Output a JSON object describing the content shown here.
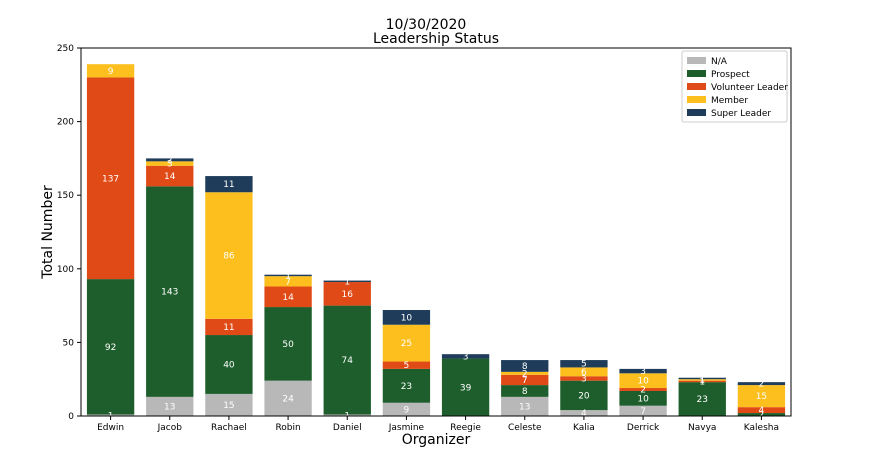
{
  "chart_data": {
    "type": "bar",
    "stacked": true,
    "title": "10/30/2020",
    "subtitle": "Leadership Status",
    "xlabel": "Organizer",
    "ylabel": "Total Number",
    "ylim": [
      0,
      250
    ],
    "yticks": [
      0,
      50,
      100,
      150,
      200,
      250
    ],
    "grid": false,
    "legend_position": "top-right",
    "categories": [
      "Edwin",
      "Jacob",
      "Rachael",
      "Robin",
      "Daniel",
      "Jasmine",
      "Reegie",
      "Celeste",
      "Kalia",
      "Derrick",
      "Navya",
      "Kalesha"
    ],
    "series": [
      {
        "name": "N/A",
        "color": "#b8b8b8",
        "values": [
          1,
          13,
          15,
          24,
          1,
          9,
          0,
          13,
          4,
          7,
          0,
          0
        ]
      },
      {
        "name": "Prospect",
        "color": "#1e5e2c",
        "values": [
          92,
          143,
          40,
          50,
          74,
          23,
          39,
          8,
          20,
          10,
          23,
          2
        ]
      },
      {
        "name": "Volunteer Leader",
        "color": "#e04a17",
        "values": [
          137,
          14,
          11,
          14,
          16,
          5,
          0,
          7,
          3,
          2,
          1,
          4
        ]
      },
      {
        "name": "Member",
        "color": "#fcbf1e",
        "values": [
          9,
          3,
          86,
          7,
          0,
          25,
          0,
          2,
          6,
          10,
          1,
          15
        ]
      },
      {
        "name": "Super Leader",
        "color": "#1f3d5a",
        "values": [
          0,
          2,
          11,
          1,
          1,
          10,
          3,
          8,
          5,
          3,
          1,
          2
        ]
      }
    ],
    "labels": [
      [
        "1",
        "13",
        "15",
        "24",
        "1",
        "9",
        "",
        "13",
        "4",
        "7",
        "",
        ""
      ],
      [
        "92",
        "143",
        "40",
        "50",
        "74",
        "23",
        "39",
        "8",
        "20",
        "10",
        "23",
        "2"
      ],
      [
        "137",
        "14",
        "11",
        "14",
        "16",
        "5",
        "",
        "7",
        "3",
        "2",
        "1",
        "4"
      ],
      [
        "9",
        "3",
        "86",
        "7",
        "",
        "25",
        "",
        "2",
        "6",
        "10",
        "1",
        "15"
      ],
      [
        "",
        "2",
        "11",
        "1",
        "1",
        "10",
        "3",
        "8",
        "5",
        "3",
        "1",
        "2"
      ]
    ]
  }
}
